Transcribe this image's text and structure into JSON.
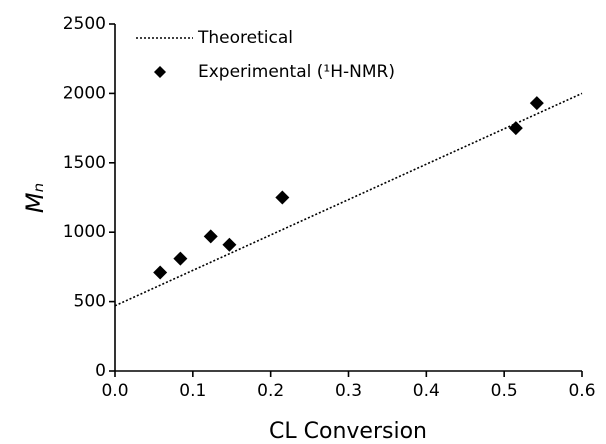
{
  "chart_data": {
    "type": "scatter",
    "x_label": "CL Conversion",
    "y_label": "Mₙ",
    "xlim": [
      0,
      0.6
    ],
    "ylim": [
      0,
      2500
    ],
    "xticks": [
      {
        "value": 0,
        "label": "0.0"
      },
      0.1,
      0.2,
      0.3,
      0.4,
      0.5,
      0.6
    ],
    "yticks": [
      0,
      500,
      1000,
      1500,
      2000,
      2500
    ],
    "legend": "upper left",
    "series": [
      {
        "name": "Theoretical",
        "kind": "line",
        "color": "#000000",
        "x": [
          0,
          0.6
        ],
        "values": [
          470,
          2000
        ]
      },
      {
        "name": "Experimental (¹H-NMR)",
        "kind": "points",
        "color": "#000000",
        "x": [
          0.058,
          0.084,
          0.123,
          0.147,
          0.215,
          0.515,
          0.542
        ],
        "values": [
          710,
          810,
          970,
          910,
          1250,
          1750,
          1930
        ]
      }
    ]
  }
}
